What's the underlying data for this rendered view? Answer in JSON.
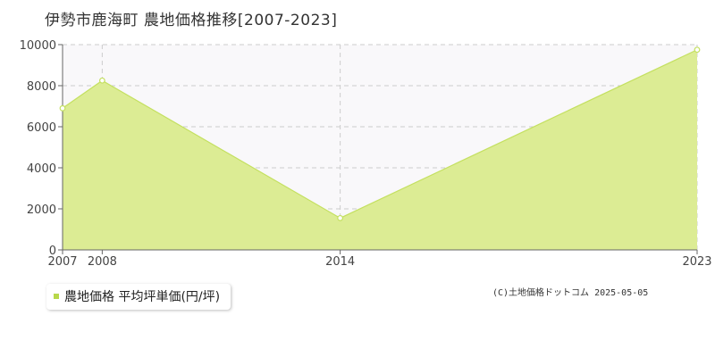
{
  "title": "伊勢市鹿海町 農地価格推移[2007-2023]",
  "legend": {
    "label": "農地価格 平均坪単価(円/坪)"
  },
  "copyright": "(C)土地価格ドットコム 2025-05-05",
  "colors": {
    "fill": "#dcec94",
    "line": "#c4e060",
    "marker": "#b8d84a",
    "plot_bg": "#f9f8fa",
    "grid": "#cccccc",
    "axis": "#666666"
  },
  "chart_data": {
    "type": "area",
    "title": "伊勢市鹿海町 農地価格推移[2007-2023]",
    "xlabel": "",
    "ylabel": "",
    "x": [
      "2007",
      "2008",
      "2014",
      "2023"
    ],
    "series": [
      {
        "name": "農地価格 平均坪単価(円/坪)",
        "values": [
          6900,
          8250,
          1550,
          9750
        ]
      }
    ],
    "ylim": [
      0,
      10000
    ],
    "yticks": [
      0,
      2000,
      4000,
      6000,
      8000,
      10000
    ],
    "grid": true,
    "legend_position": "bottom-left"
  }
}
